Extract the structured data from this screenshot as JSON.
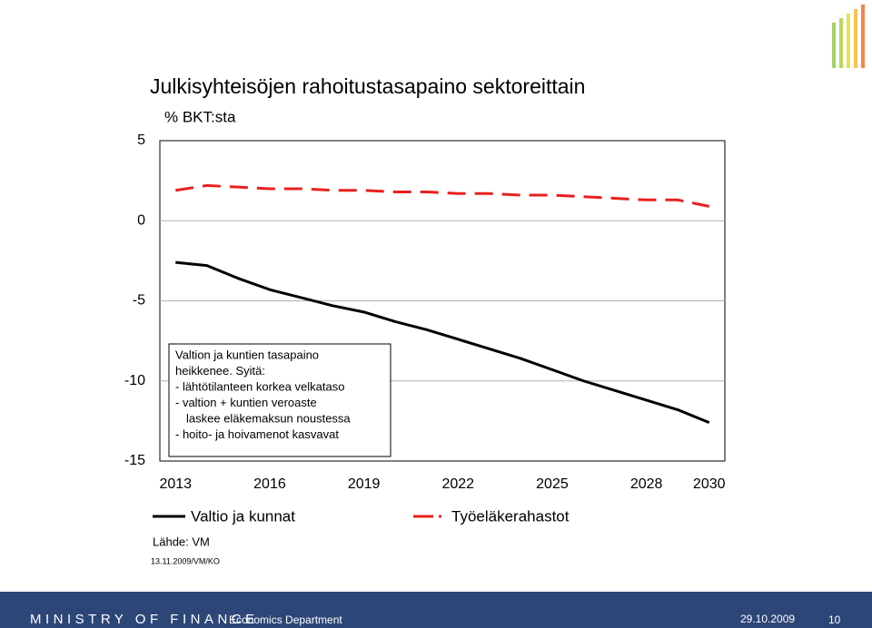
{
  "chart_data": {
    "type": "line",
    "title": "Julkisyhteisöjen rahoitustasapaino sektoreittain",
    "subtitle": "% BKT:sta",
    "x": [
      2013,
      2014,
      2015,
      2016,
      2017,
      2018,
      2019,
      2020,
      2021,
      2022,
      2023,
      2024,
      2025,
      2026,
      2027,
      2028,
      2029,
      2030
    ],
    "series": [
      {
        "name": "Valtio ja kunnat",
        "color": "#000000",
        "dashed": false,
        "values": [
          -2.6,
          -2.8,
          -3.6,
          -4.3,
          -4.8,
          -5.3,
          -5.7,
          -6.3,
          -6.8,
          -7.4,
          -8.0,
          -8.6,
          -9.3,
          -10.0,
          -10.6,
          -11.2,
          -11.8,
          -12.6
        ]
      },
      {
        "name": "Työeläkerahastot",
        "color": "#e8201e",
        "dashed": true,
        "values": [
          1.9,
          2.2,
          2.1,
          2.0,
          2.0,
          1.9,
          1.9,
          1.8,
          1.8,
          1.7,
          1.7,
          1.6,
          1.6,
          1.5,
          1.4,
          1.3,
          1.3,
          0.9
        ]
      }
    ],
    "xlim": [
      2012.5,
      2030.5
    ],
    "xticks": [
      2013,
      2016,
      2019,
      2022,
      2025,
      2028,
      2030
    ],
    "ylim": [
      -15,
      5
    ],
    "yticks": [
      5,
      0,
      -5,
      -10,
      -15
    ],
    "grid_lines": [
      0,
      -5,
      -10
    ],
    "annotation": [
      "Valtion ja kuntien tasapaino",
      "heikkenee. Syitä:",
      "- lähtötilanteen korkea velkataso",
      "- valtion + kuntien veroaste",
      "laskee eläkemaksun noustessa",
      "- hoito- ja hoivamenot kasvavat"
    ]
  },
  "source": "Lähde: VM",
  "date_note": "13.11.2009/VM/KO",
  "footer": {
    "brand": "MINISTRY OF FINANCE",
    "department": "Economics Department",
    "date": "29.10.2009",
    "page": "10"
  }
}
